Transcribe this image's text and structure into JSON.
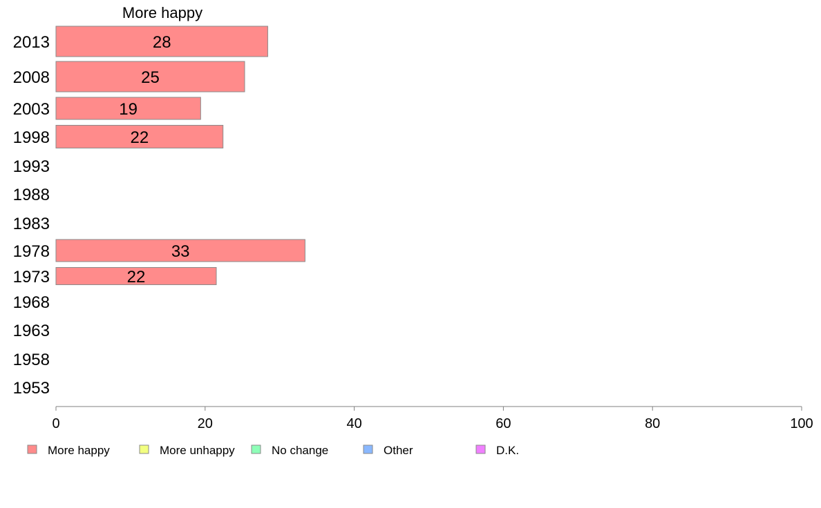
{
  "chart_data": {
    "type": "bar",
    "orientation": "horizontal",
    "title": "More happy",
    "categories": [
      "2013",
      "2008",
      "2003",
      "1998",
      "1993",
      "1988",
      "1983",
      "1978",
      "1973",
      "1968",
      "1963",
      "1958",
      "1953"
    ],
    "series": [
      {
        "name": "More happy",
        "color": "#ff8b8b",
        "values": [
          28.4,
          25.3,
          19.4,
          22.4,
          null,
          null,
          null,
          33.4,
          21.5,
          null,
          null,
          null,
          null
        ]
      }
    ],
    "data_labels": [
      "28",
      "25",
      "19",
      "22",
      "",
      "",
      "",
      "33",
      "22",
      "",
      "",
      "",
      ""
    ],
    "xlim": [
      0,
      100
    ],
    "xticks": [
      0,
      20,
      40,
      60,
      80,
      100
    ],
    "xlabel": "",
    "ylabel": "",
    "grid": false,
    "legend_position": "bottom",
    "legend": [
      {
        "label": "More happy",
        "color": "#ff8b8b"
      },
      {
        "label": "More unhappy",
        "color": "#f2ff80"
      },
      {
        "label": "No change",
        "color": "#8effb8"
      },
      {
        "label": "Other",
        "color": "#8ab8ff"
      },
      {
        "label": "D.K.",
        "color": "#f080ff"
      }
    ]
  }
}
